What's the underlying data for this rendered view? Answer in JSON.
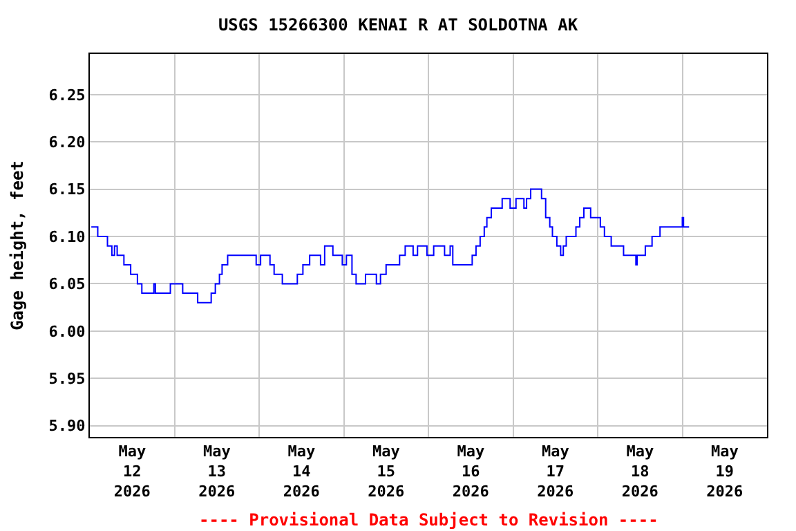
{
  "chart_data": {
    "type": "step",
    "title": "USGS 15266300 KENAI R AT SOLDOTNA AK",
    "ylabel": "Gage height, feet",
    "annotations": [
      "---- Provisional Data Subject to Revision ----"
    ],
    "grid": true,
    "marker": "none",
    "line_style": "solid",
    "xlim": [
      "2026-05-12T00:00",
      "2026-05-20T00:00"
    ],
    "xticks": [
      {
        "value": "2026-05-12T12:00",
        "label": "May\n12\n2026"
      },
      {
        "value": "2026-05-13T00:00",
        "label": null
      },
      {
        "value": "2026-05-13T12:00",
        "label": "May\n13\n2026"
      },
      {
        "value": "2026-05-14T00:00",
        "label": null
      },
      {
        "value": "2026-05-14T12:00",
        "label": "May\n14\n2026"
      },
      {
        "value": "2026-05-15T00:00",
        "label": null
      },
      {
        "value": "2026-05-15T12:00",
        "label": "May\n15\n2026"
      },
      {
        "value": "2026-05-16T00:00",
        "label": null
      },
      {
        "value": "2026-05-16T12:00",
        "label": "May\n16\n2026"
      },
      {
        "value": "2026-05-17T00:00",
        "label": null
      },
      {
        "value": "2026-05-17T12:00",
        "label": "May\n17\n2026"
      },
      {
        "value": "2026-05-18T00:00",
        "label": null
      },
      {
        "value": "2026-05-18T12:00",
        "label": "May\n18\n2026"
      },
      {
        "value": "2026-05-19T00:00",
        "label": null
      },
      {
        "value": "2026-05-19T12:00",
        "label": "May\n19\n2026"
      }
    ],
    "ylim": [
      5.888,
      6.293
    ],
    "yticks": [
      {
        "value": 5.9,
        "label": "5.90"
      },
      {
        "value": 5.95,
        "label": "5.95"
      },
      {
        "value": 6.0,
        "label": "6.00"
      },
      {
        "value": 6.05,
        "label": "6.05"
      },
      {
        "value": 6.1,
        "label": "6.10"
      },
      {
        "value": 6.15,
        "label": "6.15"
      },
      {
        "value": 6.2,
        "label": "6.20"
      },
      {
        "value": 6.25,
        "label": "6.25"
      }
    ],
    "series": [
      {
        "color": "#0000ff",
        "x": [
          "2026-05-12T00:25",
          "2026-05-12T01:30",
          "2026-05-12T02:15",
          "2026-05-12T04:40",
          "2026-05-12T05:00",
          "2026-05-12T06:15",
          "2026-05-12T07:00",
          "2026-05-12T07:45",
          "2026-05-12T09:40",
          "2026-05-12T11:35",
          "2026-05-12T13:30",
          "2026-05-12T14:45",
          "2026-05-12T18:10",
          "2026-05-12T18:35",
          "2026-05-12T22:50",
          "2026-05-13T02:20",
          "2026-05-13T06:35",
          "2026-05-13T10:25",
          "2026-05-13T11:35",
          "2026-05-13T12:45",
          "2026-05-13T13:30",
          "2026-05-13T15:05",
          "2026-05-13T17:25",
          "2026-05-13T22:50",
          "2026-05-13T23:10",
          "2026-05-14T00:25",
          "2026-05-14T03:05",
          "2026-05-14T04:15",
          "2026-05-14T06:35",
          "2026-05-14T10:25",
          "2026-05-14T10:50",
          "2026-05-14T12:25",
          "2026-05-14T14:20",
          "2026-05-14T16:40",
          "2026-05-14T17:25",
          "2026-05-14T18:35",
          "2026-05-14T20:30",
          "2026-05-14T20:55",
          "2026-05-14T23:35",
          "2026-05-15T00:45",
          "2026-05-15T02:20",
          "2026-05-15T03:30",
          "2026-05-15T06:10",
          "2026-05-15T09:15",
          "2026-05-15T10:25",
          "2026-05-15T12:00",
          "2026-05-15T14:40",
          "2026-05-15T15:50",
          "2026-05-15T17:25",
          "2026-05-15T19:40",
          "2026-05-15T20:55",
          "2026-05-15T23:35",
          "2026-05-16T01:30",
          "2026-05-16T04:35",
          "2026-05-16T06:10",
          "2026-05-16T06:55",
          "2026-05-16T12:00",
          "2026-05-16T12:25",
          "2026-05-16T13:30",
          "2026-05-16T14:40",
          "2026-05-16T15:50",
          "2026-05-16T16:35",
          "2026-05-16T17:50",
          "2026-05-16T19:40",
          "2026-05-16T20:55",
          "2026-05-16T23:10",
          "2026-05-17T00:50",
          "2026-05-17T03:05",
          "2026-05-17T03:50",
          "2026-05-17T05:00",
          "2026-05-17T07:20",
          "2026-05-17T08:05",
          "2026-05-17T09:15",
          "2026-05-17T10:25",
          "2026-05-17T11:10",
          "2026-05-17T12:25",
          "2026-05-17T13:30",
          "2026-05-17T14:15",
          "2026-05-17T15:05",
          "2026-05-17T17:00",
          "2026-05-17T17:50",
          "2026-05-17T18:55",
          "2026-05-17T20:05",
          "2026-05-17T21:15",
          "2026-05-17T22:00",
          "2026-05-18T00:00",
          "2026-05-18T00:45",
          "2026-05-18T01:55",
          "2026-05-18T03:50",
          "2026-05-18T06:55",
          "2026-05-18T07:20",
          "2026-05-18T10:25",
          "2026-05-18T10:50",
          "2026-05-18T11:10",
          "2026-05-18T12:45",
          "2026-05-18T13:30",
          "2026-05-18T15:25",
          "2026-05-18T17:00",
          "2026-05-18T17:40",
          "2026-05-18T23:10",
          "2026-05-19T00:00",
          "2026-05-19T00:20",
          "2026-05-19T01:55"
        ],
        "values": [
          6.11,
          6.11,
          6.1,
          6.1,
          6.09,
          6.08,
          6.09,
          6.08,
          6.07,
          6.06,
          6.05,
          6.04,
          6.05,
          6.04,
          6.05,
          6.04,
          6.03,
          6.04,
          6.05,
          6.06,
          6.07,
          6.08,
          6.08,
          6.08,
          6.07,
          6.08,
          6.07,
          6.06,
          6.05,
          6.05,
          6.06,
          6.07,
          6.08,
          6.08,
          6.07,
          6.09,
          6.09,
          6.08,
          6.07,
          6.08,
          6.06,
          6.05,
          6.06,
          6.05,
          6.06,
          6.07,
          6.07,
          6.08,
          6.09,
          6.08,
          6.09,
          6.08,
          6.09,
          6.08,
          6.09,
          6.07,
          6.07,
          6.08,
          6.09,
          6.1,
          6.11,
          6.12,
          6.13,
          6.13,
          6.14,
          6.13,
          6.14,
          6.13,
          6.14,
          6.15,
          6.15,
          6.14,
          6.12,
          6.11,
          6.1,
          6.09,
          6.08,
          6.09,
          6.1,
          6.1,
          6.11,
          6.12,
          6.13,
          6.13,
          6.12,
          6.12,
          6.11,
          6.1,
          6.09,
          6.09,
          6.08,
          6.08,
          6.07,
          6.08,
          6.08,
          6.09,
          6.1,
          6.1,
          6.11,
          6.11,
          6.12,
          6.11,
          6.11
        ]
      }
    ]
  }
}
